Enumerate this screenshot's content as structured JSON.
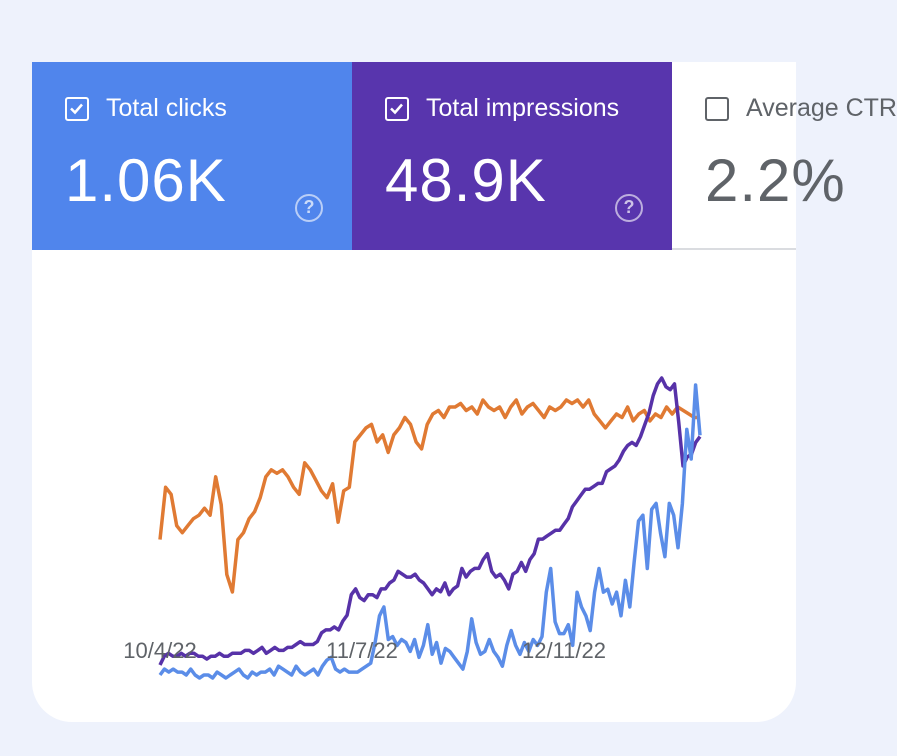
{
  "metrics": [
    {
      "label": "Total clicks",
      "value": "1.06K",
      "checked": true,
      "color": "#5085ec"
    },
    {
      "label": "Total impressions",
      "value": "48.9K",
      "checked": true,
      "color": "#5835ad"
    },
    {
      "label": "Average CTR",
      "value": "2.2%",
      "checked": false,
      "color": "#ffffff"
    }
  ],
  "help_icon": "help-circle-icon",
  "chart_data": {
    "type": "line",
    "x_ticks": [
      "10/4/22",
      "11/7/22",
      "12/11/22"
    ],
    "grid": false,
    "series": [
      {
        "name": "Total clicks",
        "color": "#5b8de8",
        "values": [
          2,
          4,
          3,
          4,
          3,
          3,
          2,
          4,
          2,
          1,
          2,
          2,
          1,
          3,
          2,
          1,
          2,
          3,
          4,
          2,
          1,
          3,
          2,
          3,
          3,
          4,
          2,
          5,
          4,
          3,
          2,
          5,
          3,
          2,
          3,
          4,
          2,
          5,
          7,
          8,
          4,
          3,
          4,
          3,
          3,
          3,
          4,
          5,
          6,
          13,
          22,
          25,
          14,
          15,
          12,
          14,
          13,
          10,
          14,
          8,
          12,
          19,
          9,
          13,
          6,
          11,
          10,
          8,
          6,
          4,
          10,
          21,
          13,
          9,
          10,
          14,
          10,
          8,
          5,
          12,
          17,
          12,
          9,
          13,
          10,
          14,
          12,
          15,
          30,
          38,
          20,
          16,
          16,
          19,
          12,
          30,
          25,
          22,
          17,
          30,
          38,
          30,
          31,
          26,
          30,
          22,
          34,
          25,
          40,
          54,
          56,
          38,
          58,
          60,
          50,
          42,
          60,
          56,
          45,
          60,
          85,
          75,
          100,
          83
        ]
      },
      {
        "name": "Total impressions",
        "color": "#5732a8",
        "values": [
          2,
          5,
          6,
          5,
          5,
          6,
          5,
          6,
          6,
          5,
          5,
          4,
          5,
          5,
          6,
          5,
          5,
          6,
          6,
          6,
          7,
          7,
          6,
          7,
          8,
          6,
          7,
          8,
          7,
          7,
          8,
          8,
          9,
          10,
          9,
          9,
          9,
          10,
          13,
          14,
          14,
          15,
          14,
          17,
          19,
          26,
          28,
          25,
          24,
          26,
          26,
          25,
          28,
          28,
          30,
          31,
          34,
          33,
          32,
          32,
          33,
          31,
          30,
          28,
          26,
          28,
          27,
          30,
          26,
          28,
          29,
          35,
          32,
          34,
          35,
          35,
          38,
          40,
          34,
          32,
          33,
          31,
          28,
          33,
          34,
          37,
          34,
          38,
          40,
          45,
          45,
          46,
          47,
          48,
          48,
          50,
          52,
          56,
          58,
          60,
          62,
          62,
          63,
          64,
          64,
          68,
          69,
          70,
          72,
          75,
          77,
          78,
          77,
          80,
          84,
          88,
          94,
          98,
          100,
          97,
          96,
          98,
          85,
          70,
          73,
          74,
          78,
          80
        ]
      },
      {
        "name": "Average CTR",
        "color": "#e07a33",
        "values": [
          40,
          55,
          53,
          44,
          42,
          44,
          46,
          47,
          49,
          47,
          58,
          50,
          30,
          25,
          40,
          42,
          46,
          48,
          52,
          58,
          60,
          59,
          60,
          58,
          55,
          53,
          62,
          60,
          57,
          54,
          52,
          56,
          45,
          54,
          55,
          68,
          70,
          72,
          73,
          68,
          70,
          65,
          70,
          72,
          75,
          73,
          68,
          66,
          73,
          76,
          77,
          75,
          78,
          78,
          79,
          77,
          78,
          76,
          80,
          78,
          77,
          78,
          75,
          78,
          80,
          76,
          78,
          79,
          77,
          75,
          78,
          77,
          78,
          80,
          79,
          80,
          78,
          80,
          76,
          74,
          72,
          74,
          76,
          75,
          78,
          74,
          76,
          77,
          74,
          76,
          75,
          78,
          76,
          78,
          77,
          76,
          75,
          75
        ]
      }
    ]
  }
}
